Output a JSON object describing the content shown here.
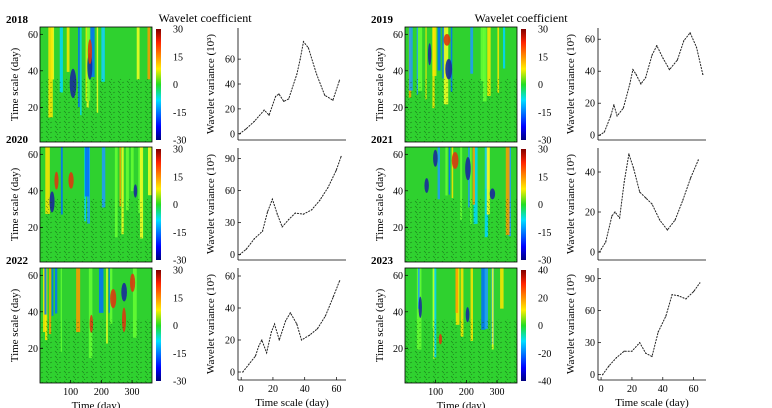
{
  "figure": {
    "wavelet_label": "Wavelet coefficient",
    "scalogram_xlabel": "Time (day)",
    "scalogram_ylabel": "Time scale (day)",
    "variance_xlabel": "Time scale (day)",
    "variance_ylabel": "Wavelet variance (10³)"
  },
  "chart_data": [
    {
      "type": "heatmap",
      "year": "2018",
      "title": "2018",
      "xlabel": "",
      "ylabel": "Time scale (day)",
      "xticks": [],
      "yticks": [
        20,
        40,
        60
      ],
      "xlim": [
        0,
        365
      ],
      "ylim": [
        1,
        64
      ],
      "colorbar": {
        "label": "Wavelet coefficient",
        "ticks": [
          30,
          15,
          0,
          -15,
          -30
        ],
        "range": [
          -30,
          30
        ]
      }
    },
    {
      "type": "line",
      "year": "2018",
      "xlabel": "",
      "ylabel": "Wavelet variance (10³)",
      "xlim": [
        0,
        66
      ],
      "ylim": [
        -5,
        85
      ],
      "xticks": [],
      "yticks": [
        0,
        20,
        40,
        60
      ],
      "x": [
        1,
        5,
        10,
        16,
        19,
        23,
        25,
        28,
        31,
        36,
        38,
        40,
        43,
        48,
        53,
        58,
        62
      ],
      "y": [
        0,
        4,
        10,
        19,
        15,
        30,
        32,
        26,
        28,
        48,
        60,
        74,
        69,
        48,
        31,
        27,
        43
      ]
    },
    {
      "type": "heatmap",
      "year": "2019",
      "title": "2019",
      "xlabel": "",
      "ylabel": "Time scale (day)",
      "xticks": [],
      "yticks": [
        20,
        40,
        60
      ],
      "xlim": [
        0,
        365
      ],
      "ylim": [
        1,
        64
      ],
      "colorbar": {
        "label": "Wavelet coefficient",
        "ticks": [
          30,
          15,
          0,
          -15,
          -30
        ],
        "range": [
          -30,
          30
        ]
      }
    },
    {
      "type": "line",
      "year": "2019",
      "xlabel": "",
      "ylabel": "Wavelet variance (10³)",
      "xlim": [
        0,
        68
      ],
      "ylim": [
        -3,
        67
      ],
      "xticks": [],
      "yticks": [
        0,
        20,
        40,
        60
      ],
      "x": [
        1,
        4,
        8,
        10,
        12,
        16,
        20,
        22,
        24,
        27,
        30,
        34,
        37,
        41,
        45,
        50,
        54,
        58,
        62,
        66
      ],
      "y": [
        0,
        2,
        12,
        19,
        12,
        17,
        32,
        41,
        38,
        32,
        36,
        50,
        56,
        48,
        41,
        47,
        59,
        64,
        55,
        38
      ]
    },
    {
      "type": "heatmap",
      "year": "2020",
      "title": "2020",
      "xlabel": "",
      "ylabel": "Time scale (day)",
      "xticks": [],
      "yticks": [
        20,
        40,
        60
      ],
      "xlim": [
        0,
        365
      ],
      "ylim": [
        1,
        64
      ],
      "colorbar": {
        "label": "",
        "ticks": [
          30,
          15,
          0,
          -15,
          -30
        ],
        "range": [
          -30,
          30
        ]
      }
    },
    {
      "type": "line",
      "year": "2020",
      "xlabel": "",
      "ylabel": "Wavelet variance (10³)",
      "xlim": [
        0,
        66
      ],
      "ylim": [
        -5,
        100
      ],
      "xticks": [],
      "yticks": [
        0,
        30,
        60,
        90
      ],
      "x": [
        1,
        5,
        10,
        15,
        18,
        21,
        24,
        27,
        31,
        35,
        40,
        45,
        50,
        55,
        60,
        63
      ],
      "y": [
        0,
        5,
        15,
        22,
        40,
        52,
        38,
        26,
        33,
        39,
        38,
        42,
        51,
        63,
        79,
        92
      ]
    },
    {
      "type": "heatmap",
      "year": "2021",
      "title": "2021",
      "xlabel": "",
      "ylabel": "Time scale (day)",
      "xticks": [],
      "yticks": [
        20,
        40,
        60
      ],
      "xlim": [
        0,
        365
      ],
      "ylim": [
        1,
        64
      ],
      "colorbar": {
        "label": "",
        "ticks": [
          30,
          15,
          0,
          -15,
          -30
        ],
        "range": [
          -30,
          30
        ]
      }
    },
    {
      "type": "line",
      "year": "2021",
      "xlabel": "",
      "ylabel": "Wavelet variance (10³)",
      "xlim": [
        0,
        70
      ],
      "ylim": [
        -4,
        52
      ],
      "xticks": [],
      "yticks": [
        0,
        20,
        40
      ],
      "x": [
        1,
        5,
        9,
        11,
        14,
        17,
        20,
        23,
        27,
        31,
        35,
        40,
        45,
        50,
        55,
        60,
        65
      ],
      "y": [
        0,
        5,
        18,
        20,
        17,
        35,
        49,
        42,
        30,
        27,
        24,
        16,
        11,
        16,
        26,
        37,
        46
      ]
    },
    {
      "type": "heatmap",
      "year": "2022",
      "title": "2022",
      "xlabel": "Time (day)",
      "ylabel": "Time scale (day)",
      "xticks": [
        100,
        200,
        300
      ],
      "yticks": [
        20,
        40,
        60
      ],
      "xlim": [
        0,
        365
      ],
      "ylim": [
        1,
        64
      ],
      "colorbar": {
        "label": "",
        "ticks": [
          30,
          15,
          0,
          -15,
          -30
        ],
        "range": [
          -30,
          30
        ]
      }
    },
    {
      "type": "line",
      "year": "2022",
      "xlabel": "Time scale (day)",
      "ylabel": "Wavelet variance (10³)",
      "xlim": [
        -2,
        66
      ],
      "ylim": [
        -5,
        65
      ],
      "xticks": [
        0,
        20,
        40,
        60
      ],
      "yticks": [
        0,
        20,
        40,
        60
      ],
      "x": [
        1,
        5,
        9,
        11,
        13,
        16,
        19,
        21,
        24,
        28,
        31,
        35,
        38,
        43,
        48,
        53,
        58,
        62
      ],
      "y": [
        0,
        5,
        10,
        16,
        20,
        12,
        25,
        30,
        20,
        32,
        37,
        30,
        20,
        23,
        27,
        35,
        47,
        57
      ]
    },
    {
      "type": "heatmap",
      "year": "2023",
      "title": "2023",
      "xlabel": "Time (day)",
      "ylabel": "Time scale (day)",
      "xticks": [
        100,
        200,
        300
      ],
      "yticks": [
        20,
        40,
        60
      ],
      "xlim": [
        0,
        365
      ],
      "ylim": [
        1,
        64
      ],
      "colorbar": {
        "label": "",
        "ticks": [
          40,
          20,
          0,
          -20,
          -40
        ],
        "range": [
          -40,
          40
        ]
      }
    },
    {
      "type": "line",
      "year": "2023",
      "xlabel": "Time scale (day)",
      "ylabel": "Wavelet variance (10³)",
      "xlim": [
        -2,
        68
      ],
      "ylim": [
        -5,
        100
      ],
      "xticks": [
        0,
        20,
        40,
        60
      ],
      "yticks": [
        0,
        30,
        60,
        90
      ],
      "x": [
        1,
        5,
        10,
        15,
        20,
        25,
        29,
        33,
        37,
        42,
        46,
        50,
        55,
        60,
        64
      ],
      "y": [
        0,
        8,
        16,
        22,
        22,
        30,
        20,
        17,
        40,
        55,
        75,
        74,
        71,
        78,
        86
      ]
    }
  ]
}
